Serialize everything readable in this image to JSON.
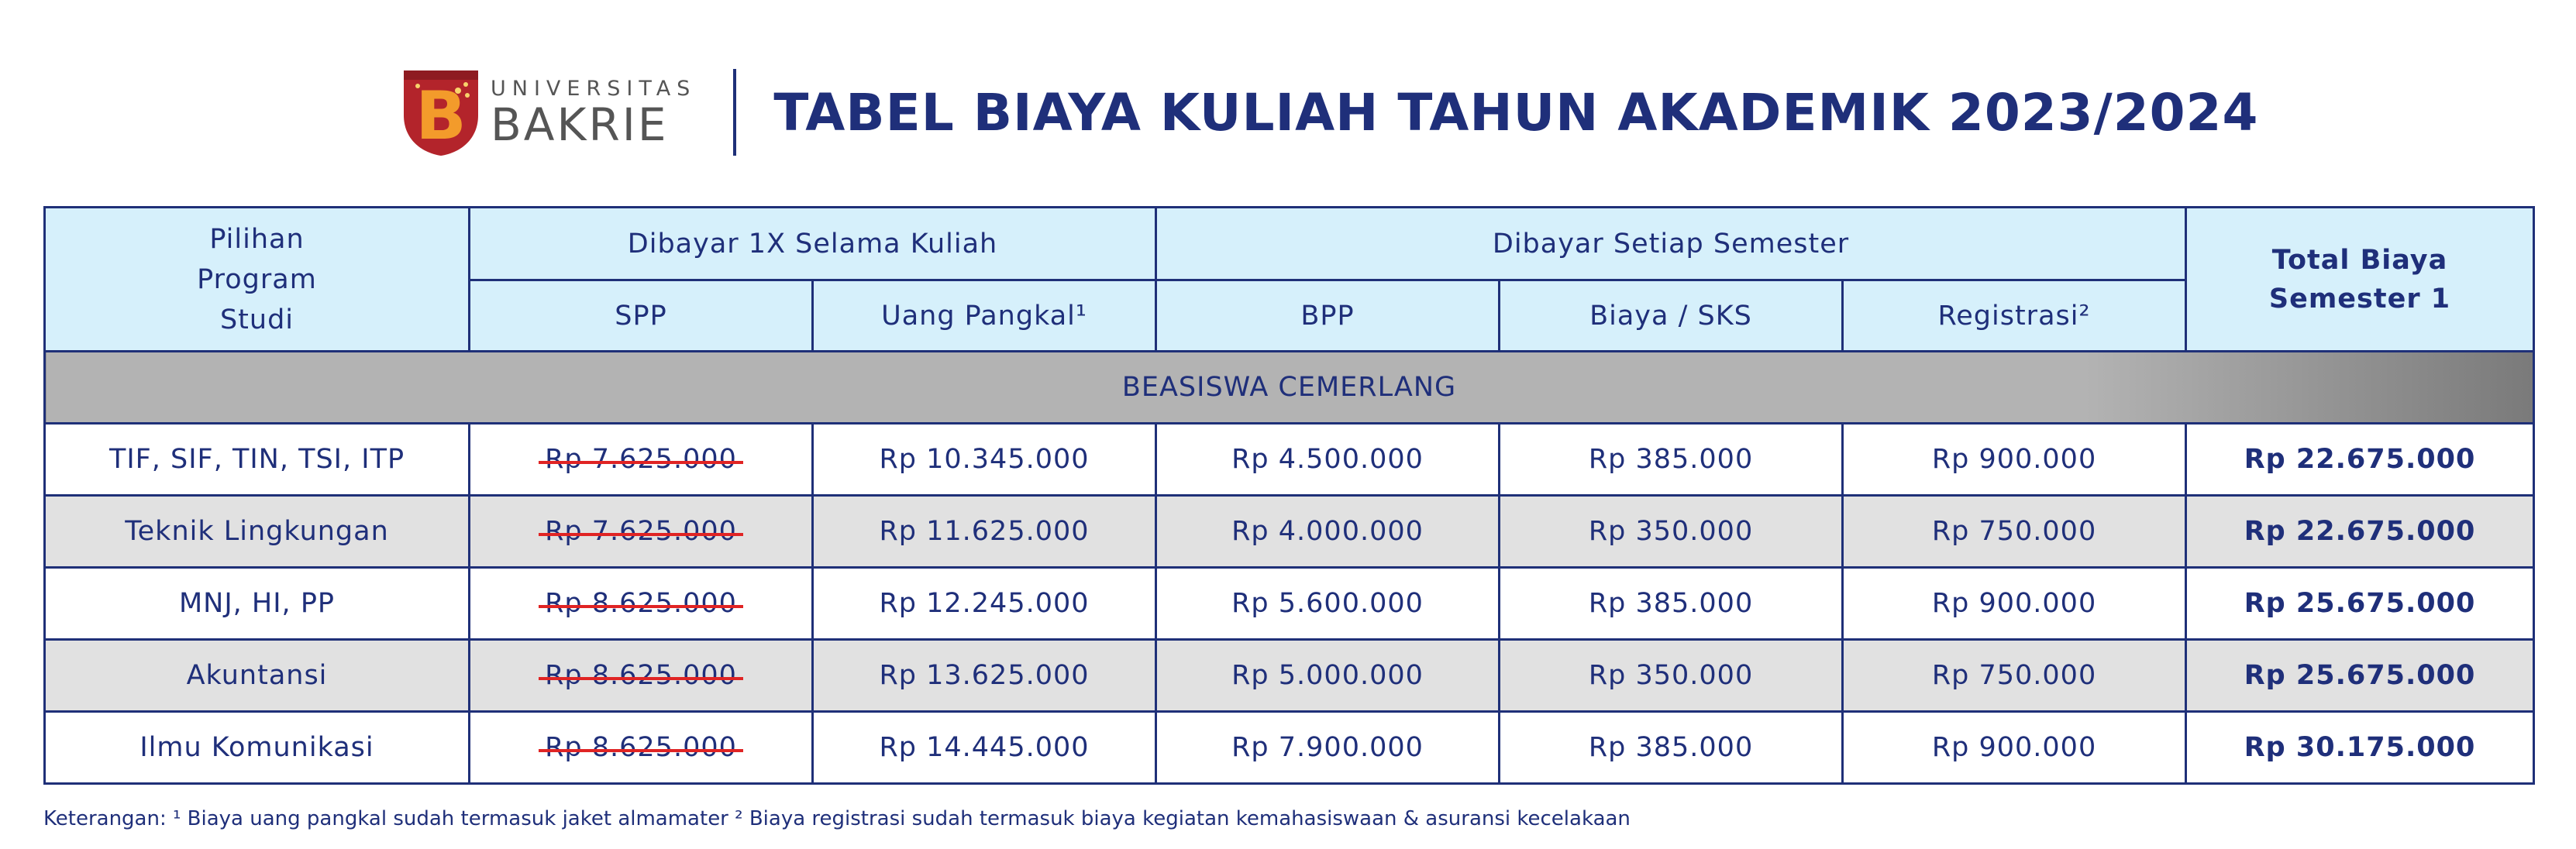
{
  "logo": {
    "university_label": "UNIVERSITAS",
    "name": "BAKRIE"
  },
  "title": "TABEL BIAYA KULIAH TAHUN AKADEMIK 2023/2024",
  "table": {
    "headers": {
      "program": "Pilihan Program Studi",
      "once_group": "Dibayar 1X Selama Kuliah",
      "semester_group": "Dibayar Setiap Semester",
      "total": "Total Biaya Semester 1",
      "spp": "SPP",
      "uang_pangkal": "Uang Pangkal¹",
      "bpp": "BPP",
      "biaya_sks": "Biaya / SKS",
      "registrasi": "Registrasi²"
    },
    "section_label": "BEASISWA CEMERLANG",
    "rows": [
      {
        "program": "TIF, SIF, TIN, TSI, ITP",
        "spp": "Rp 7.625.000",
        "uang_pangkal": "Rp 10.345.000",
        "bpp": "Rp 4.500.000",
        "sks": "Rp 385.000",
        "registrasi": "Rp 900.000",
        "total": "Rp 22.675.000"
      },
      {
        "program": "Teknik Lingkungan",
        "spp": "Rp 7.625.000",
        "uang_pangkal": "Rp 11.625.000",
        "bpp": "Rp 4.000.000",
        "sks": "Rp 350.000",
        "registrasi": "Rp 750.000",
        "total": "Rp 22.675.000"
      },
      {
        "program": "MNJ, HI, PP",
        "spp": "Rp 8.625.000",
        "uang_pangkal": "Rp 12.245.000",
        "bpp": "Rp 5.600.000",
        "sks": "Rp 385.000",
        "registrasi": "Rp 900.000",
        "total": "Rp 25.675.000"
      },
      {
        "program": "Akuntansi",
        "spp": "Rp 8.625.000",
        "uang_pangkal": "Rp 13.625.000",
        "bpp": "Rp 5.000.000",
        "sks": "Rp 350.000",
        "registrasi": "Rp 750.000",
        "total": "Rp 25.675.000"
      },
      {
        "program": "Ilmu Komunikasi",
        "spp": "Rp 8.625.000",
        "uang_pangkal": "Rp 14.445.000",
        "bpp": "Rp 7.900.000",
        "sks": "Rp 385.000",
        "registrasi": "Rp 900.000",
        "total": "Rp 30.175.000"
      }
    ]
  },
  "footnote": "Keterangan: ¹ Biaya uang pangkal sudah termasuk jaket almamater  ² Biaya registrasi sudah termasuk biaya kegiatan kemahasiswaan & asuransi kecelakaan",
  "colors": {
    "brand_navy": "#1f2f7a",
    "header_fill": "#d6f0fb",
    "section_fill": "#b3b3b3",
    "alt_row_fill": "#e1e1e1",
    "strike_red": "#e02424",
    "logo_red": "#b3242b",
    "logo_orange": "#f39b2b"
  }
}
